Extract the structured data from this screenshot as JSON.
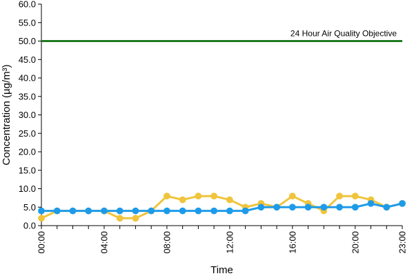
{
  "chart_data": {
    "type": "line",
    "title": "",
    "xlabel": "Time",
    "ylabel": "Concentration (µg/m³)",
    "ylim": [
      0,
      60
    ],
    "yticks": [
      "0.0",
      "5.0",
      "10.0",
      "15.0",
      "20.0",
      "25.0",
      "30.0",
      "35.0",
      "40.0",
      "45.0",
      "50.0",
      "55.0",
      "60.0"
    ],
    "x": [
      "00:00",
      "01:00",
      "02:00",
      "03:00",
      "04:00",
      "05:00",
      "06:00",
      "07:00",
      "08:00",
      "09:00",
      "10:00",
      "11:00",
      "12:00",
      "13:00",
      "14:00",
      "15:00",
      "16:00",
      "17:00",
      "18:00",
      "19:00",
      "20:00",
      "21:00",
      "22:00",
      "23:00"
    ],
    "xtick_labels": [
      "00:00",
      "04:00",
      "08:00",
      "12:00",
      "16:00",
      "20:00",
      "23:00"
    ],
    "grid": false,
    "legend": "none",
    "series": [
      {
        "color": "#f0c43c",
        "values": [
          2,
          4,
          4,
          4,
          4,
          2,
          2,
          4,
          8,
          7,
          8,
          8,
          7,
          5,
          6,
          5,
          8,
          6,
          4,
          8,
          8,
          7,
          5,
          6
        ]
      },
      {
        "color": "#1e9be8",
        "values": [
          4,
          4,
          4,
          4,
          4,
          4,
          4,
          4,
          4,
          4,
          4,
          4,
          4,
          4,
          5,
          5,
          5,
          5,
          5,
          5,
          5,
          6,
          5,
          6
        ]
      }
    ],
    "reference_line": {
      "value": 50,
      "label": "24 Hour Air Quality Objective",
      "color": "#1f7a1f"
    }
  }
}
